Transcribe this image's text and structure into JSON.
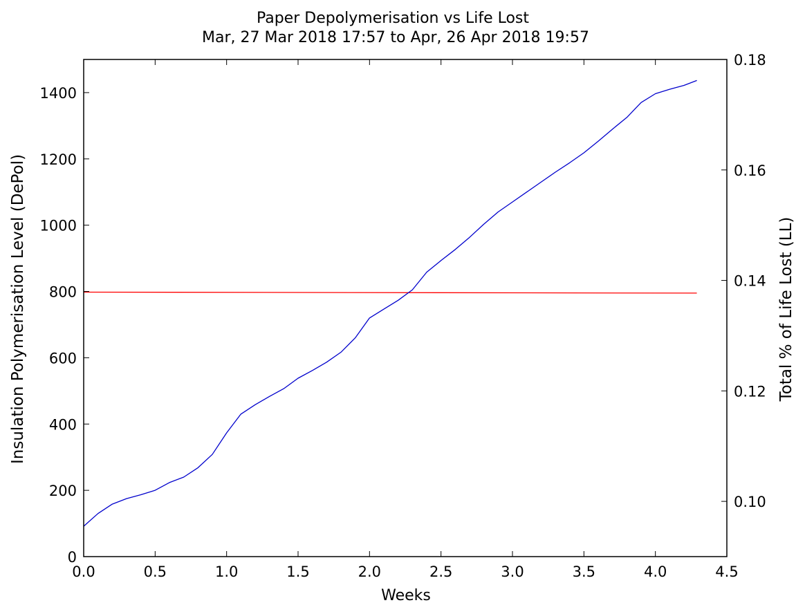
{
  "chart_data": {
    "type": "line",
    "title": "Paper Depolymerisation vs Life Lost",
    "subtitle": "Mar, 27 Mar 2018 17:57 to Apr, 26 Apr 2018 19:57",
    "xlabel": "Weeks",
    "ylabel_left": "Insulation Polymerisation Level (DePol)",
    "ylabel_right": "Total % of Life Lost (LL)",
    "xlim": [
      0,
      4.5
    ],
    "ylim_left": [
      0,
      1500
    ],
    "ylim_right": [
      0.09,
      0.18
    ],
    "x_ticks": [
      "0.0",
      "0.5",
      "1.0",
      "1.5",
      "2.0",
      "2.5",
      "3.0",
      "3.5",
      "4.0",
      "4.5"
    ],
    "y_left_ticks": [
      "0",
      "200",
      "400",
      "600",
      "800",
      "1000",
      "1200",
      "1400"
    ],
    "y_right_ticks": [
      "0.10",
      "0.12",
      "0.14",
      "0.16",
      "0.18"
    ],
    "grid": false,
    "colors": {
      "left_axis": "#ff0000",
      "right_axis": "#0000cc",
      "depol_line": "#ff0000",
      "ll_line": "#0000cc"
    },
    "series": [
      {
        "axis": "left",
        "color": "#ff0000",
        "x": [
          0.0,
          4.29
        ],
        "values": [
          798,
          795
        ]
      },
      {
        "axis": "right",
        "color": "#0000cc",
        "x": [
          0.0,
          0.1,
          0.2,
          0.3,
          0.4,
          0.5,
          0.6,
          0.7,
          0.8,
          0.9,
          1.0,
          1.1,
          1.2,
          1.3,
          1.4,
          1.5,
          1.6,
          1.7,
          1.8,
          1.9,
          2.0,
          2.1,
          2.2,
          2.3,
          2.4,
          2.5,
          2.6,
          2.7,
          2.8,
          2.9,
          3.0,
          3.1,
          3.2,
          3.3,
          3.4,
          3.5,
          3.6,
          3.7,
          3.8,
          3.9,
          4.0,
          4.1,
          4.2,
          4.29
        ],
        "values": [
          0.0955,
          0.0978,
          0.0995,
          0.1005,
          0.1012,
          0.102,
          0.1034,
          0.1044,
          0.1061,
          0.1085,
          0.1124,
          0.1158,
          0.1175,
          0.119,
          0.1204,
          0.1223,
          0.1237,
          0.1252,
          0.127,
          0.1296,
          0.1332,
          0.1348,
          0.1364,
          0.1383,
          0.1415,
          0.1436,
          0.1456,
          0.1478,
          0.1502,
          0.1524,
          0.1542,
          0.156,
          0.1578,
          0.1596,
          0.1613,
          0.1631,
          0.1652,
          0.1674,
          0.1695,
          0.1722,
          0.1738,
          0.1746,
          0.1753,
          0.1762
        ]
      }
    ]
  }
}
